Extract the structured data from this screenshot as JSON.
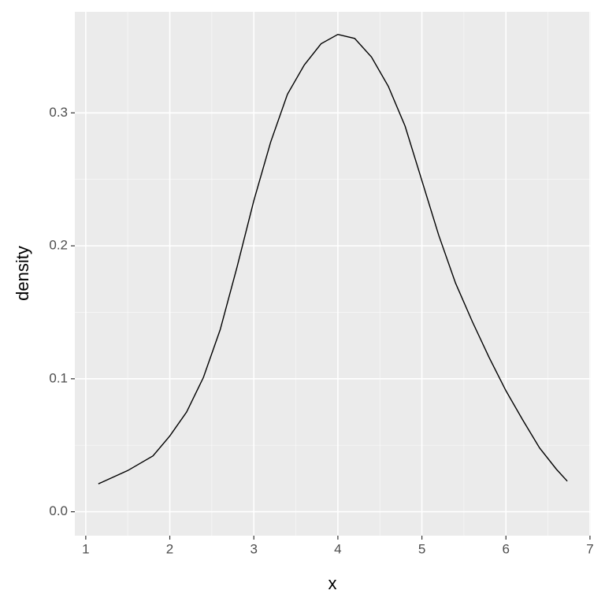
{
  "chart_data": {
    "type": "line",
    "x_label": "x",
    "y_label": "density",
    "x": [
      1.15,
      1.5,
      1.8,
      2.0,
      2.2,
      2.4,
      2.6,
      2.8,
      3.0,
      3.2,
      3.4,
      3.6,
      3.8,
      4.0,
      4.2,
      4.4,
      4.6,
      4.8,
      5.0,
      5.2,
      5.4,
      5.6,
      5.8,
      6.0,
      6.2,
      6.4,
      6.6,
      6.73
    ],
    "series": [
      {
        "color": "#000000",
        "values": [
          0.021,
          0.031,
          0.042,
          0.057,
          0.075,
          0.101,
          0.137,
          0.184,
          0.234,
          0.278,
          0.314,
          0.336,
          0.352,
          0.359,
          0.356,
          0.342,
          0.32,
          0.29,
          0.249,
          0.208,
          0.172,
          0.143,
          0.116,
          0.091,
          0.069,
          0.048,
          0.032,
          0.023
        ]
      }
    ],
    "xlim": [
      0.87,
      7.01
    ],
    "xticks": [
      1,
      2,
      3,
      4,
      5,
      6,
      7
    ],
    "ylim": [
      -0.018,
      0.376
    ],
    "yticks": [
      {
        "value": 0,
        "label": "0.0"
      },
      0.1,
      0.2,
      0.3
    ],
    "grid": true
  }
}
